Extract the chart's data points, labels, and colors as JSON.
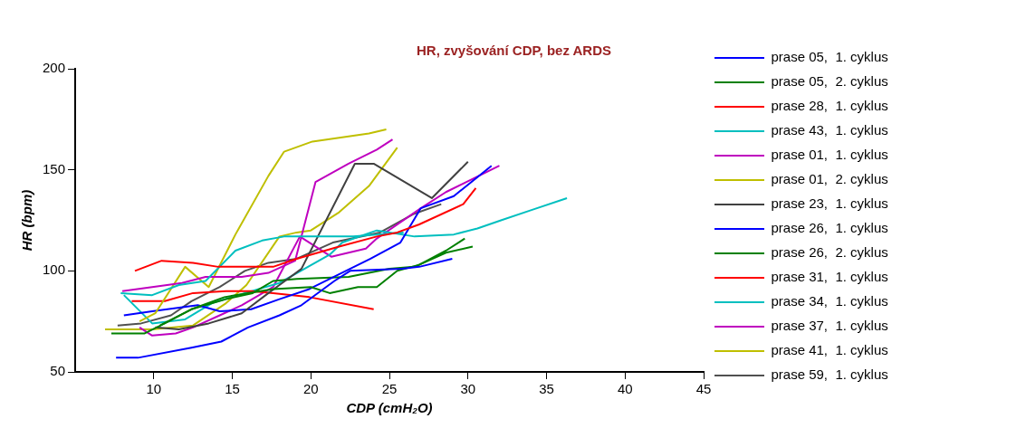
{
  "chart_data": {
    "type": "line",
    "title": "HR, zvyšování CDP, bez ARDS",
    "xlabel": "CDP (cmH₂O)",
    "ylabel": "HR (bpm)",
    "xlim": [
      5,
      45
    ],
    "xticks": [
      10,
      15,
      20,
      25,
      30,
      35,
      40,
      45
    ],
    "ylim": [
      50,
      200
    ],
    "yticks": [
      50,
      100,
      150,
      200
    ],
    "grid": false,
    "legend": "right",
    "marker": "none",
    "line_style": "solid",
    "series": [
      {
        "name": "prase 05,  1. cyklus",
        "color": "#0000ff",
        "x": [
          7.6,
          9,
          12.4,
          14.3,
          16,
          18,
          19.4,
          21.5,
          22.5,
          25.8,
          26.9,
          29
        ],
        "values": [
          57,
          57,
          62,
          65,
          72,
          78,
          83,
          95,
          100,
          101,
          102,
          106
        ]
      },
      {
        "name": "prase 05,  2. cyklus",
        "color": "#008000",
        "x": [
          7.3,
          9.4,
          10.7,
          12.4,
          14.5,
          17.6,
          20,
          21.2,
          23,
          24.2,
          25.5,
          26.9,
          28.6,
          29.8
        ],
        "values": [
          69,
          69,
          74,
          81,
          87,
          91,
          92,
          89,
          92,
          92,
          100,
          103,
          110,
          116
        ]
      },
      {
        "name": "prase 28,  1. cyklus",
        "color": "#ff0000",
        "x": [
          8.8,
          10.5,
          12.5,
          14.1,
          15.8,
          17.6,
          19.1,
          21.8,
          24.2,
          25.5,
          26.9,
          29.7,
          30.5
        ],
        "values": [
          100,
          105,
          104,
          102,
          102,
          102,
          106,
          112,
          117,
          119,
          123,
          133,
          141
        ]
      },
      {
        "name": "prase 43,  1. cyklus",
        "color": "#00bfbf",
        "x": [
          7.9,
          9.9,
          11.6,
          13.3,
          15.2,
          16.9,
          18.3,
          19.9,
          22.7,
          25.9
        ],
        "values": [
          89,
          88,
          93,
          95,
          110,
          115,
          117,
          117,
          117,
          119
        ]
      },
      {
        "name": "prase 01,  1. cyklus",
        "color": "#bf00bf",
        "x": [
          8,
          9.9,
          11.8,
          13.3,
          15.6,
          17.3,
          19,
          20.3,
          22.4,
          24.2,
          25.2
        ],
        "values": [
          90,
          92,
          94,
          97,
          97,
          99,
          105,
          144,
          153,
          160,
          165
        ]
      },
      {
        "name": "prase 01,  2. cyklus",
        "color": "#bfbf00",
        "x": [
          9.1,
          10.1,
          12,
          13.5,
          15.2,
          17.3,
          18.3,
          20.1,
          23.7,
          24.8
        ],
        "values": [
          75,
          79,
          102,
          92,
          118,
          147,
          159,
          164,
          168,
          170
        ]
      },
      {
        "name": "prase 23,  1. cyklus",
        "color": "#404040",
        "x": [
          10.1,
          11.6,
          13.5,
          15.6,
          17.3,
          18,
          19.4,
          22.8,
          24,
          27.7,
          30
        ],
        "values": [
          72,
          71,
          74,
          79,
          89,
          93,
          101,
          153,
          153,
          136,
          154
        ]
      },
      {
        "name": "prase 26,  1. cyklus",
        "color": "#0000ff",
        "x": [
          8.1,
          9.9,
          12.8,
          14.2,
          16.2,
          18,
          19.9,
          23.8,
          25.7,
          27,
          29.1,
          31.5
        ],
        "values": [
          78,
          80,
          83,
          80,
          81,
          86,
          91,
          106,
          114,
          131,
          137,
          152
        ]
      },
      {
        "name": "prase 26,  2. cyklus",
        "color": "#008000",
        "x": [
          10.4,
          12.4,
          14.6,
          16.3,
          17.6,
          19.1,
          22.4,
          23.7,
          25,
          26.6,
          28.6,
          30.3
        ],
        "values": [
          73,
          81,
          86,
          89,
          95,
          96,
          97,
          99,
          101,
          102,
          109,
          112
        ]
      },
      {
        "name": "prase 31,  1. cyklus",
        "color": "#ff0000",
        "x": [
          8.6,
          10.7,
          12.5,
          14.6,
          16.2,
          17.6,
          19.9,
          24
        ],
        "values": [
          85,
          85,
          89,
          90,
          90,
          89,
          87,
          81
        ]
      },
      {
        "name": "prase 34,  1. cyklus",
        "color": "#00bfbf",
        "x": [
          8.1,
          9.9,
          12,
          13.7,
          15.8,
          18,
          21.2,
          22,
          24.2,
          26.6,
          29.1,
          30.6,
          32.1,
          34,
          36.3
        ],
        "values": [
          88,
          74,
          76,
          84,
          89,
          94,
          108,
          114,
          120,
          117,
          118,
          121,
          125,
          130,
          136
        ]
      },
      {
        "name": "prase 37,  1. cyklus",
        "color": "#bf00bf",
        "x": [
          9.1,
          9.9,
          11.4,
          12.5,
          14.2,
          15.6,
          17.6,
          19.3,
          21.3,
          23.5,
          24.2,
          27,
          28.6,
          32
        ],
        "values": [
          72,
          68,
          69,
          72,
          78,
          83,
          92,
          117,
          107,
          111,
          116,
          131,
          139,
          152
        ]
      },
      {
        "name": "prase 41,  1. cyklus",
        "color": "#bfbf00",
        "x": [
          6.9,
          9.9,
          12.5,
          14.6,
          15.9,
          18,
          19.1,
          20,
          21.8,
          23.7,
          25.5
        ],
        "values": [
          71,
          71,
          73,
          84,
          93,
          117,
          119,
          120,
          129,
          142,
          161
        ]
      },
      {
        "name": "prase 59,  1. cyklus",
        "color": "#505050",
        "x": [
          7.7,
          9.2,
          11.1,
          12.4,
          14.2,
          15.8,
          17.3,
          19.1,
          21.4,
          24.4,
          26.5,
          28.3
        ],
        "values": [
          73,
          74,
          78,
          85,
          92,
          100,
          104,
          106,
          114,
          119,
          128,
          133
        ]
      }
    ]
  }
}
